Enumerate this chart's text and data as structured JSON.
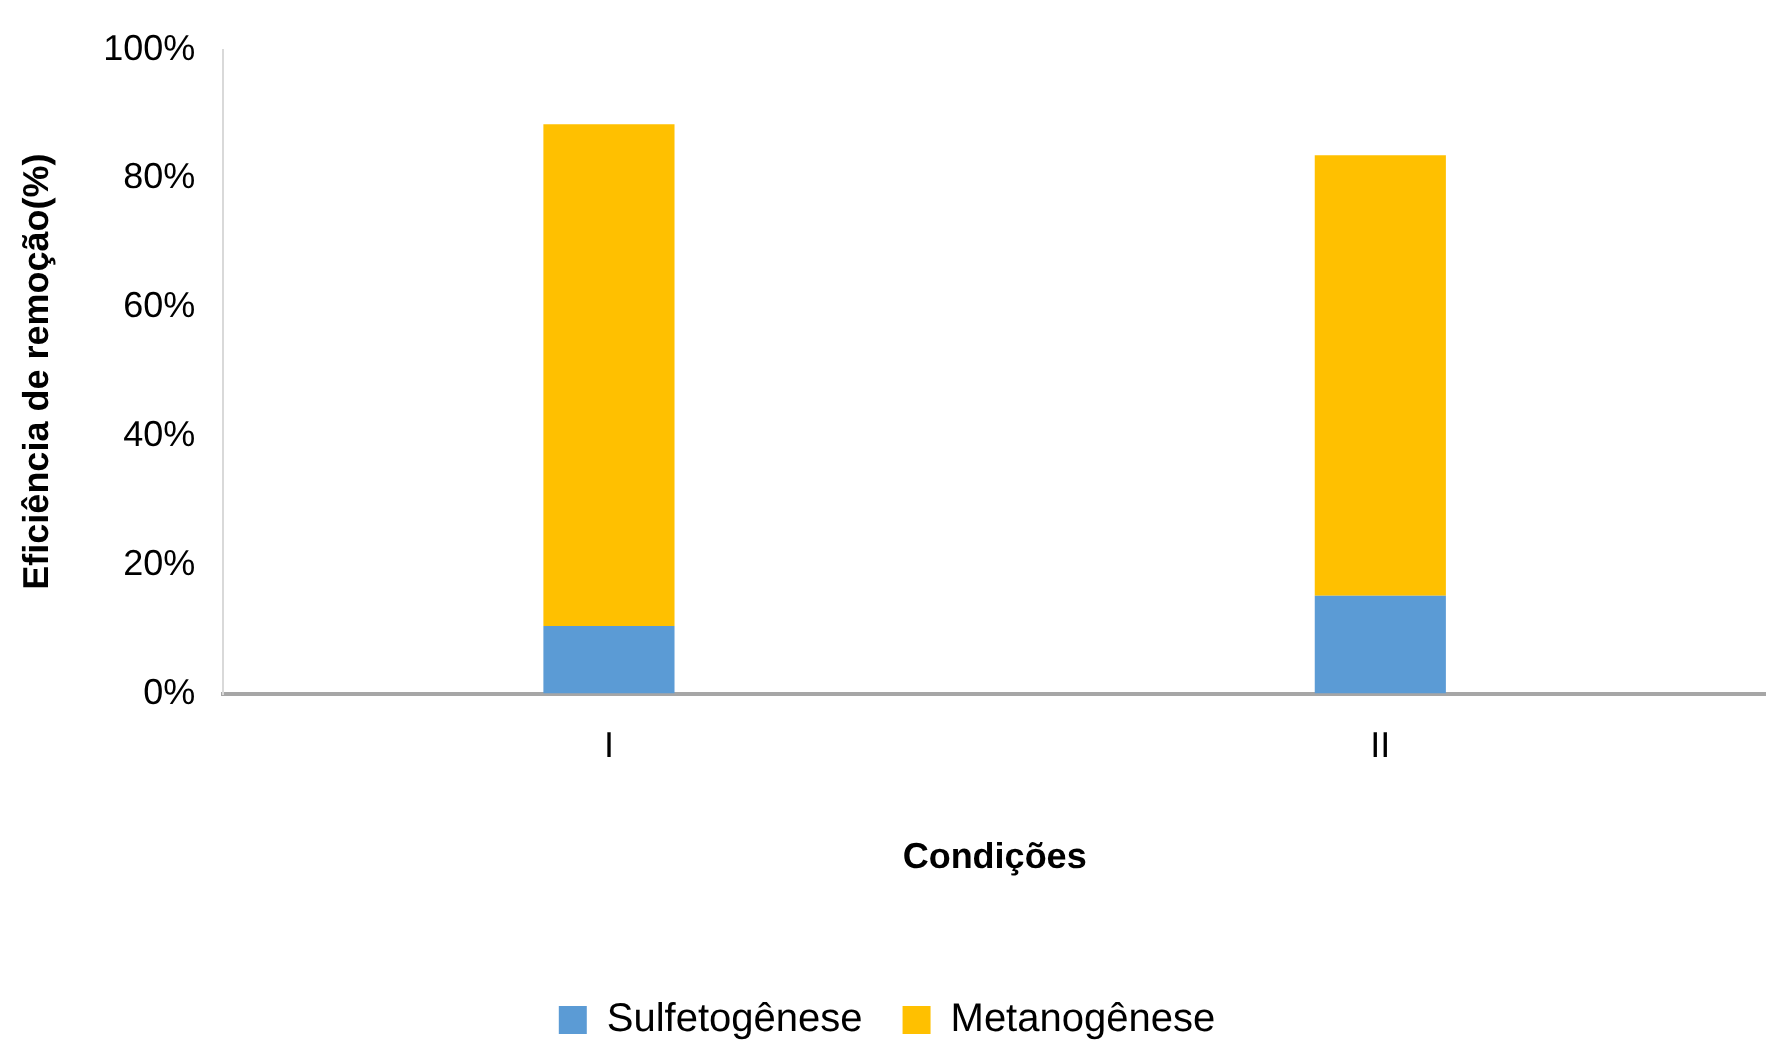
{
  "chart_data": {
    "type": "bar",
    "stacked": true,
    "xlabel": "Condições",
    "ylabel": "Eficiência de remoção(%)",
    "categories": [
      "I",
      "II"
    ],
    "series": [
      {
        "name": "Sulfetogênese",
        "color": "#5b9bd5",
        "values": [
          10.5,
          15.2
        ]
      },
      {
        "name": "Metanogênese",
        "color": "#ffc000",
        "values": [
          77.9,
          68.4
        ]
      }
    ],
    "ylim": [
      0,
      100
    ],
    "yticks": [
      {
        "value": 0,
        "label": "0%"
      },
      {
        "value": 20,
        "label": "20%"
      },
      {
        "value": 40,
        "label": "40%"
      },
      {
        "value": 60,
        "label": "60%"
      },
      {
        "value": 80,
        "label": "80%"
      },
      {
        "value": 100,
        "label": "100%"
      }
    ],
    "grid": false,
    "legend": "bottom"
  }
}
